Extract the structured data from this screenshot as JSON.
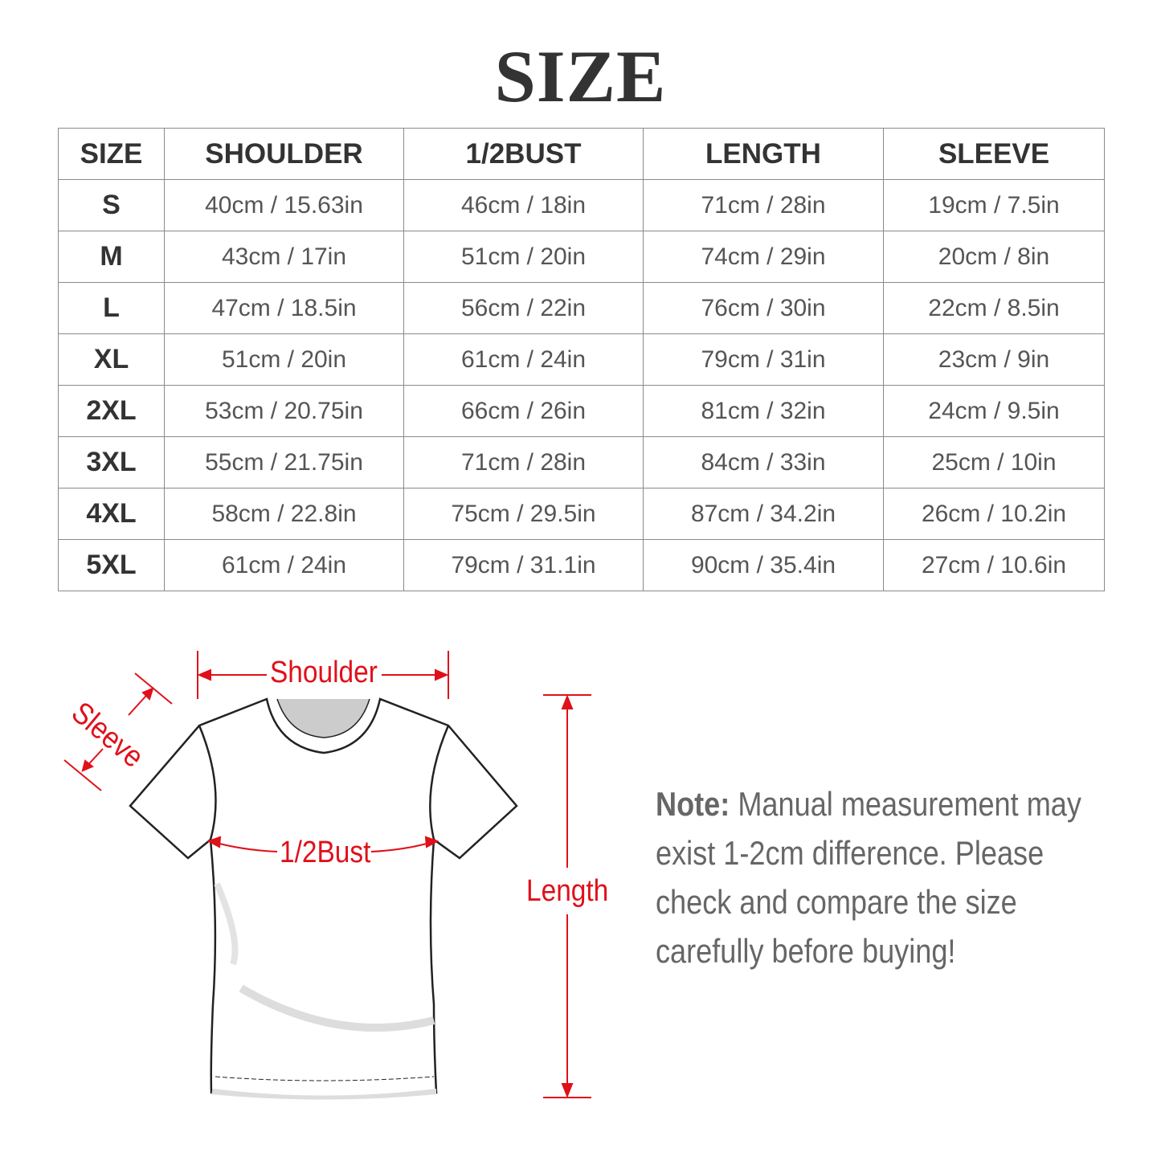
{
  "title": "SIZE",
  "table": {
    "headers": [
      "SIZE",
      "SHOULDER",
      "1/2BUST",
      "LENGTH",
      "SLEEVE"
    ],
    "rows": [
      [
        "S",
        "40cm / 15.63in",
        "46cm / 18in",
        "71cm / 28in",
        "19cm / 7.5in"
      ],
      [
        "M",
        "43cm / 17in",
        "51cm / 20in",
        "74cm / 29in",
        "20cm / 8in"
      ],
      [
        "L",
        "47cm / 18.5in",
        "56cm / 22in",
        "76cm / 30in",
        "22cm / 8.5in"
      ],
      [
        "XL",
        "51cm / 20in",
        "61cm / 24in",
        "79cm / 31in",
        "23cm / 9in"
      ],
      [
        "2XL",
        "53cm / 20.75in",
        "66cm / 26in",
        "81cm / 32in",
        "24cm / 9.5in"
      ],
      [
        "3XL",
        "55cm / 21.75in",
        "71cm / 28in",
        "84cm / 33in",
        "25cm / 10in"
      ],
      [
        "4XL",
        "58cm / 22.8in",
        "75cm / 29.5in",
        "87cm / 34.2in",
        "26cm / 10.2in"
      ],
      [
        "5XL",
        "61cm / 24in",
        "79cm / 31.1in",
        "90cm / 35.4in",
        "27cm / 10.6in"
      ]
    ]
  },
  "diagram": {
    "shoulder": "Shoulder",
    "sleeve": "Sleeve",
    "bust": "1/2Bust",
    "length": "Length",
    "accent_color": "#e0101a"
  },
  "note": {
    "label": "Note:",
    "text": " Manual measurement may exist 1-2cm difference. Please check and compare the size carefully before buying!"
  }
}
